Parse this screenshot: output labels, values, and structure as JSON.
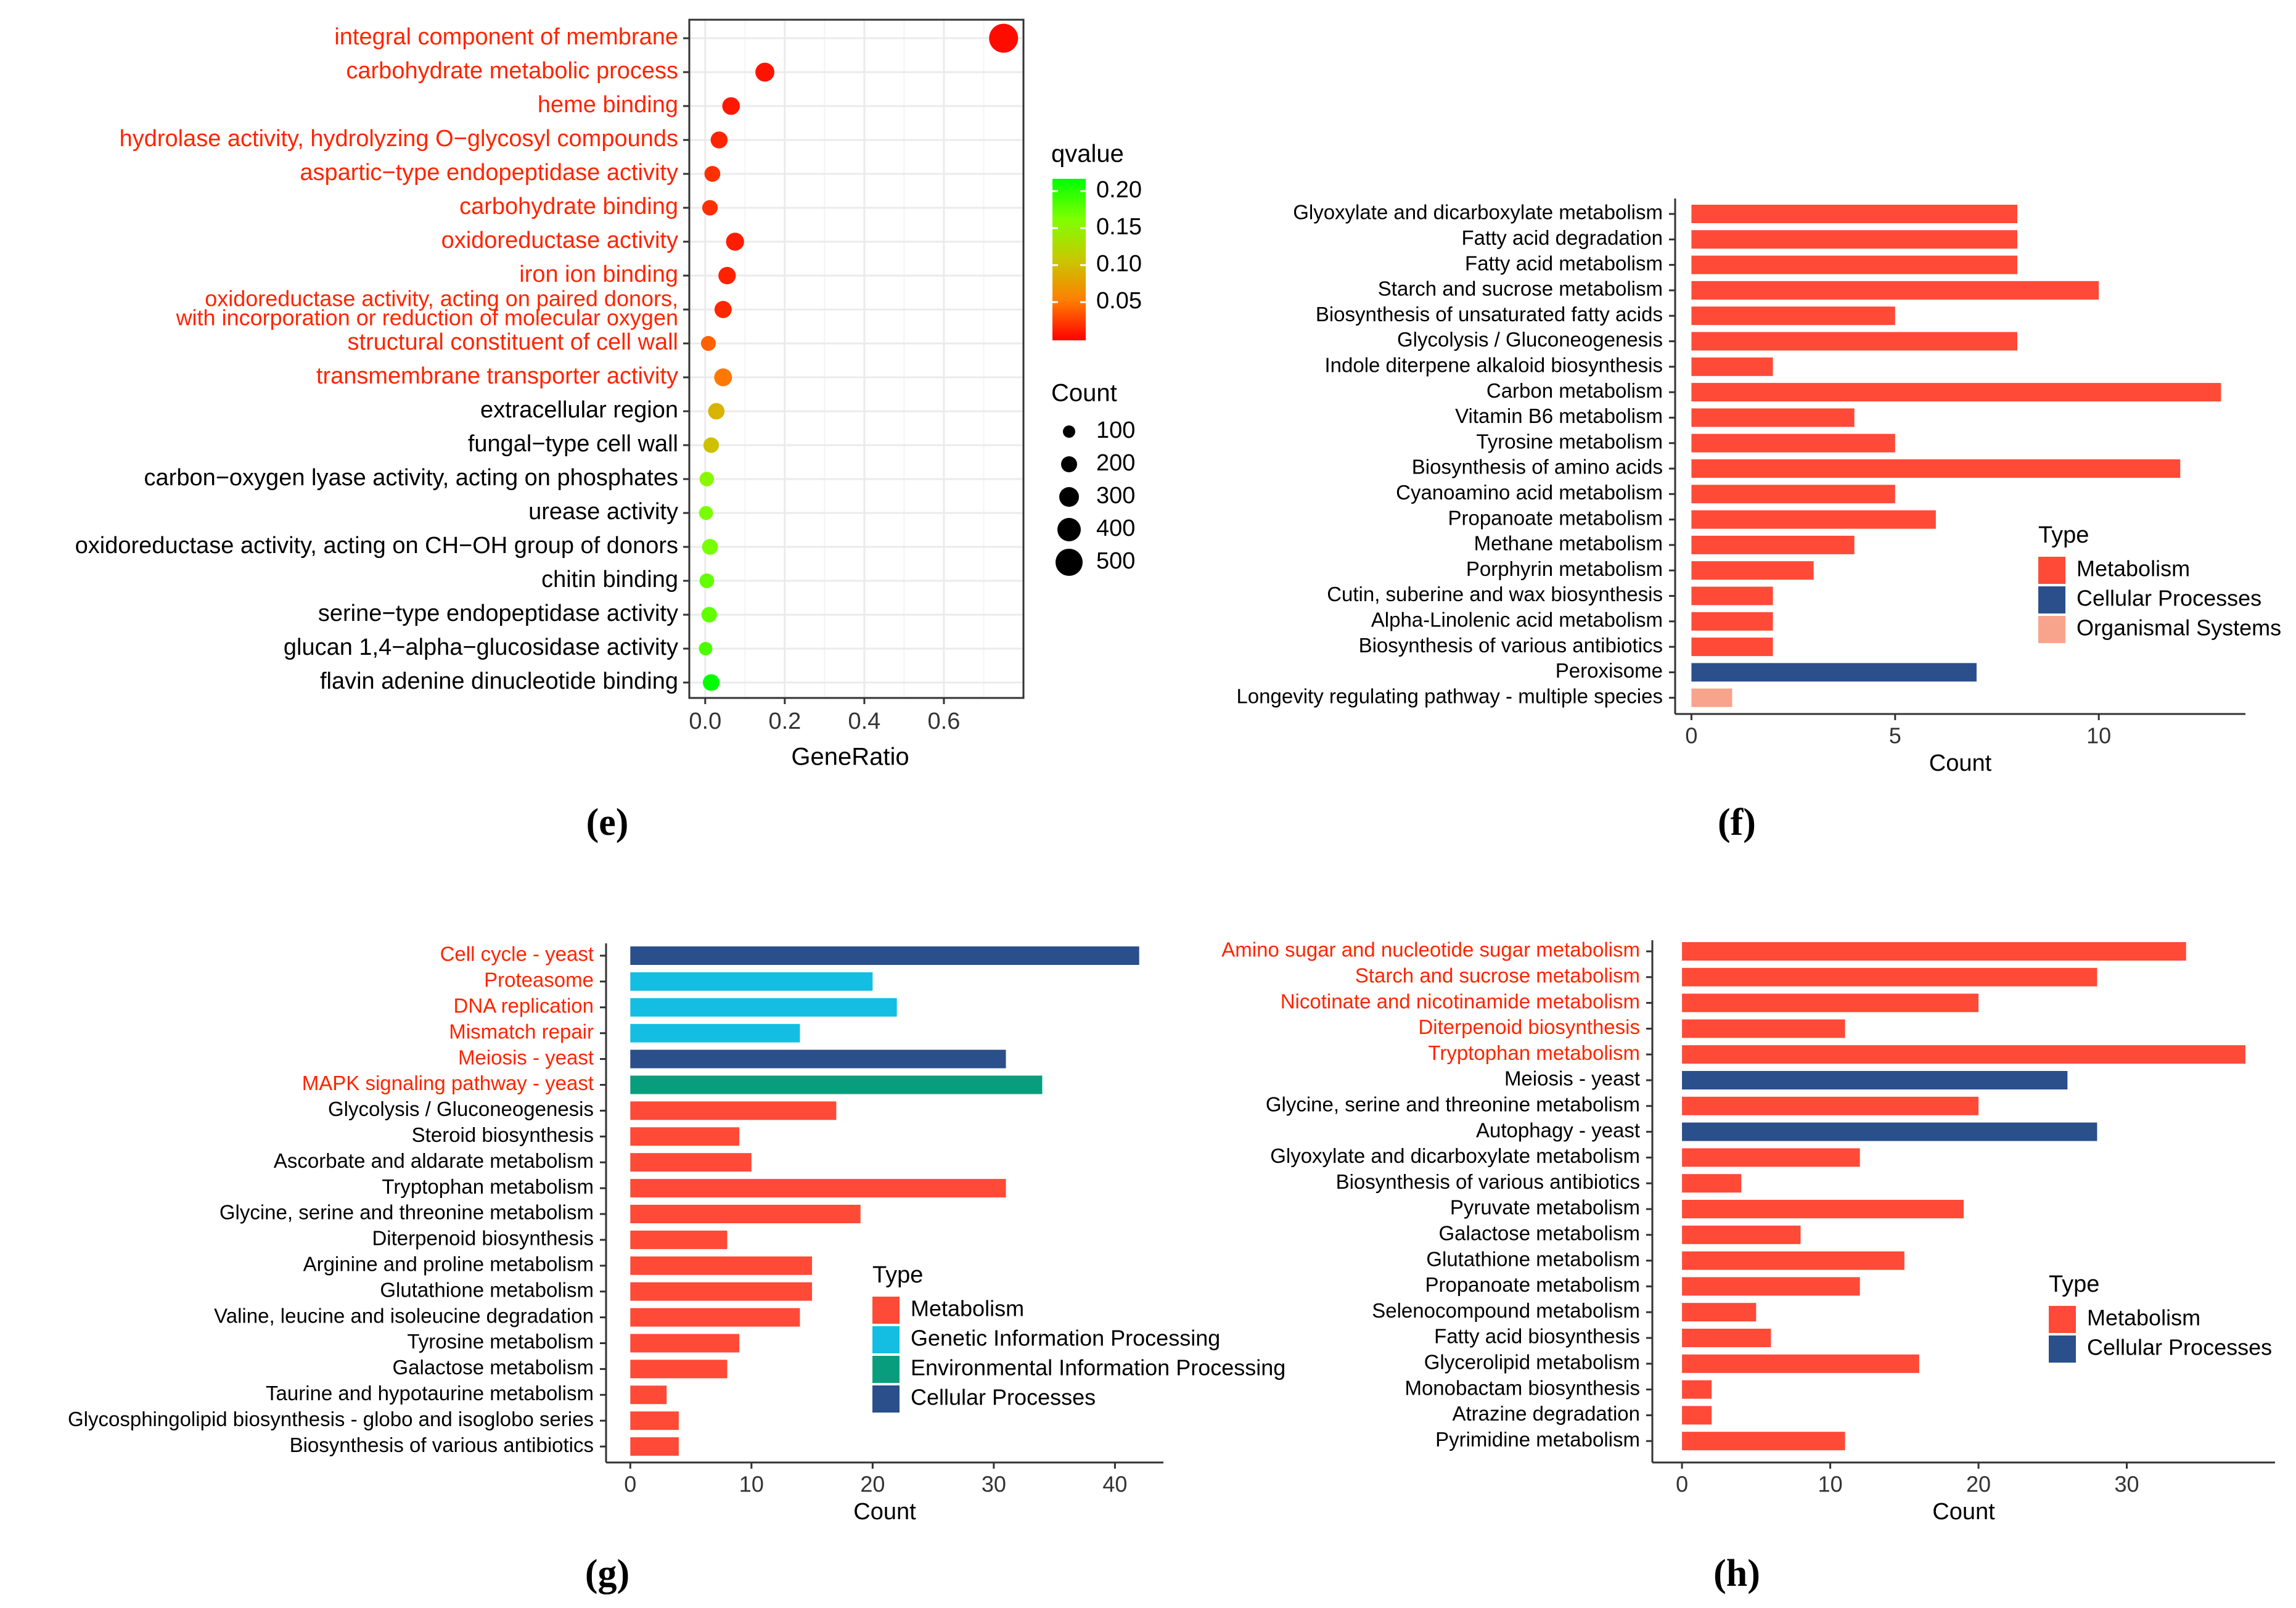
{
  "colors": {
    "metabolism": "#FE4A37",
    "cellular": "#2A4F8A",
    "organismal": "#F8A38C",
    "genetic": "#14BEE2",
    "environmental": "#089E7D",
    "red_label": "#FF2400",
    "black_label": "#000000",
    "grid": "#EBEBEB",
    "qvalue_gradient": [
      "#FF0000",
      "#FF7F00",
      "#C8C800",
      "#7FFF00",
      "#00FF00"
    ]
  },
  "chart_data": [
    {
      "panel": "e",
      "type": "scatter",
      "panel_label": "(e)",
      "xlabel": "GeneRatio",
      "xlim": [
        -0.04,
        0.8
      ],
      "xticks": [
        "0.0",
        "0.2",
        "0.4",
        "0.6"
      ],
      "xtick_values": [
        0,
        0.2,
        0.4,
        0.6
      ],
      "grid": true,
      "legend_qvalue_title": "qvalue",
      "legend_qvalue_ticks": [
        "0.20",
        "0.15",
        "0.10",
        "0.05"
      ],
      "legend_count_title": "Count",
      "legend_count_ticks": [
        "100",
        "200",
        "300",
        "400",
        "500"
      ],
      "terms": [
        {
          "label": "integral component of membrane",
          "ratio": 0.75,
          "q": 0.005,
          "count": 560,
          "red": true
        },
        {
          "label": "carbohydrate metabolic process",
          "ratio": 0.15,
          "q": 0.008,
          "count": 110,
          "red": true
        },
        {
          "label": "heme binding",
          "ratio": 0.065,
          "q": 0.01,
          "count": 75,
          "red": true
        },
        {
          "label": "hydrolase activity, hydrolyzing O−glycosyl compounds",
          "ratio": 0.035,
          "q": 0.015,
          "count": 60,
          "red": true
        },
        {
          "label": "aspartic−type endopeptidase activity",
          "ratio": 0.018,
          "q": 0.02,
          "count": 40,
          "red": true
        },
        {
          "label": "carbohydrate binding",
          "ratio": 0.012,
          "q": 0.02,
          "count": 35,
          "red": true
        },
        {
          "label": "oxidoreductase activity",
          "ratio": 0.075,
          "q": 0.012,
          "count": 85,
          "red": true
        },
        {
          "label": "iron ion binding",
          "ratio": 0.055,
          "q": 0.014,
          "count": 70,
          "red": true
        },
        {
          "label": "oxidoreductase activity, acting on paired donors,",
          "label2": "with incorporation or reduction of molecular oxygen",
          "ratio": 0.045,
          "q": 0.016,
          "count": 65,
          "red": true
        },
        {
          "label": "structural constituent of cell wall",
          "ratio": 0.008,
          "q": 0.04,
          "count": 25,
          "red": true
        },
        {
          "label": "transmembrane transporter activity",
          "ratio": 0.045,
          "q": 0.05,
          "count": 80,
          "red": true
        },
        {
          "label": "extracellular region",
          "ratio": 0.028,
          "q": 0.09,
          "count": 50,
          "red": false
        },
        {
          "label": "fungal−type cell wall",
          "ratio": 0.015,
          "q": 0.1,
          "count": 35,
          "red": false
        },
        {
          "label": "carbon−oxygen lyase activity, acting on phosphates",
          "ratio": 0.004,
          "q": 0.15,
          "count": 20,
          "red": false
        },
        {
          "label": "urease activity",
          "ratio": 0.002,
          "q": 0.16,
          "count": 15,
          "red": false
        },
        {
          "label": "oxidoreductase activity, acting on CH−OH group of donors",
          "ratio": 0.012,
          "q": 0.16,
          "count": 40,
          "red": false
        },
        {
          "label": "chitin binding",
          "ratio": 0.004,
          "q": 0.17,
          "count": 22,
          "red": false
        },
        {
          "label": "serine−type endopeptidase activity",
          "ratio": 0.01,
          "q": 0.17,
          "count": 35,
          "red": false
        },
        {
          "label": "glucan 1,4−alpha−glucosidase activity",
          "ratio": 0.001,
          "q": 0.18,
          "count": 10,
          "red": false
        },
        {
          "label": "flavin adenine dinucleotide binding",
          "ratio": 0.015,
          "q": 0.21,
          "count": 55,
          "red": false
        }
      ]
    },
    {
      "panel": "f",
      "type": "bar",
      "panel_label": "(f)",
      "xlabel": "Count",
      "xlim": [
        -0.4,
        13.6
      ],
      "xticks": [
        "0",
        "5",
        "10"
      ],
      "xtick_values": [
        0,
        5,
        10
      ],
      "legend_title": "Type",
      "legend": [
        {
          "name": "Metabolism",
          "key": "metabolism"
        },
        {
          "name": "Cellular Processes",
          "key": "cellular"
        },
        {
          "name": "Organismal Systems",
          "key": "organismal"
        }
      ],
      "bars": [
        {
          "label": "Glyoxylate and dicarboxylate metabolism",
          "value": 8,
          "type": "metabolism"
        },
        {
          "label": "Fatty acid degradation",
          "value": 8,
          "type": "metabolism"
        },
        {
          "label": "Fatty acid metabolism",
          "value": 8,
          "type": "metabolism"
        },
        {
          "label": "Starch and sucrose metabolism",
          "value": 10,
          "type": "metabolism"
        },
        {
          "label": "Biosynthesis of unsaturated fatty acids",
          "value": 5,
          "type": "metabolism"
        },
        {
          "label": "Glycolysis / Gluconeogenesis",
          "value": 8,
          "type": "metabolism"
        },
        {
          "label": "Indole diterpene alkaloid biosynthesis",
          "value": 2,
          "type": "metabolism"
        },
        {
          "label": "Carbon metabolism",
          "value": 13,
          "type": "metabolism"
        },
        {
          "label": "Vitamin B6 metabolism",
          "value": 4,
          "type": "metabolism"
        },
        {
          "label": "Tyrosine metabolism",
          "value": 5,
          "type": "metabolism"
        },
        {
          "label": "Biosynthesis of amino acids",
          "value": 12,
          "type": "metabolism"
        },
        {
          "label": "Cyanoamino acid metabolism",
          "value": 5,
          "type": "metabolism"
        },
        {
          "label": "Propanoate metabolism",
          "value": 6,
          "type": "metabolism"
        },
        {
          "label": "Methane metabolism",
          "value": 4,
          "type": "metabolism"
        },
        {
          "label": "Porphyrin metabolism",
          "value": 3,
          "type": "metabolism"
        },
        {
          "label": "Cutin, suberine and wax biosynthesis",
          "value": 2,
          "type": "metabolism"
        },
        {
          "label": "Alpha-Linolenic acid metabolism",
          "value": 2,
          "type": "metabolism"
        },
        {
          "label": "Biosynthesis of various antibiotics",
          "value": 2,
          "type": "metabolism"
        },
        {
          "label": "Peroxisome",
          "value": 7,
          "type": "cellular"
        },
        {
          "label": "Longevity regulating pathway - multiple species",
          "value": 1,
          "type": "organismal"
        }
      ]
    },
    {
      "panel": "g",
      "type": "bar",
      "panel_label": "(g)",
      "xlabel": "Count",
      "xlim": [
        -2,
        44
      ],
      "xticks": [
        "0",
        "10",
        "20",
        "30",
        "40"
      ],
      "xtick_values": [
        0,
        10,
        20,
        30,
        40
      ],
      "legend_title": "Type",
      "legend": [
        {
          "name": "Metabolism",
          "key": "metabolism"
        },
        {
          "name": "Genetic Information Processing",
          "key": "genetic"
        },
        {
          "name": "Environmental Information Processing",
          "key": "environmental"
        },
        {
          "name": "Cellular Processes",
          "key": "cellular"
        }
      ],
      "bars": [
        {
          "label": "Cell cycle - yeast",
          "value": 42,
          "type": "cellular",
          "red": true
        },
        {
          "label": "Proteasome",
          "value": 20,
          "type": "genetic",
          "red": true
        },
        {
          "label": "DNA replication",
          "value": 22,
          "type": "genetic",
          "red": true
        },
        {
          "label": "Mismatch repair",
          "value": 14,
          "type": "genetic",
          "red": true
        },
        {
          "label": "Meiosis - yeast",
          "value": 31,
          "type": "cellular",
          "red": true
        },
        {
          "label": "MAPK signaling pathway - yeast",
          "value": 34,
          "type": "environmental",
          "red": true
        },
        {
          "label": "Glycolysis / Gluconeogenesis",
          "value": 17,
          "type": "metabolism"
        },
        {
          "label": "Steroid biosynthesis",
          "value": 9,
          "type": "metabolism"
        },
        {
          "label": "Ascorbate and aldarate metabolism",
          "value": 10,
          "type": "metabolism"
        },
        {
          "label": "Tryptophan metabolism",
          "value": 31,
          "type": "metabolism"
        },
        {
          "label": "Glycine, serine and threonine metabolism",
          "value": 19,
          "type": "metabolism"
        },
        {
          "label": "Diterpenoid biosynthesis",
          "value": 8,
          "type": "metabolism"
        },
        {
          "label": "Arginine and proline metabolism",
          "value": 15,
          "type": "metabolism"
        },
        {
          "label": "Glutathione metabolism",
          "value": 15,
          "type": "metabolism"
        },
        {
          "label": "Valine, leucine and isoleucine degradation",
          "value": 14,
          "type": "metabolism"
        },
        {
          "label": "Tyrosine metabolism",
          "value": 9,
          "type": "metabolism"
        },
        {
          "label": "Galactose metabolism",
          "value": 8,
          "type": "metabolism"
        },
        {
          "label": "Taurine and hypotaurine metabolism",
          "value": 3,
          "type": "metabolism"
        },
        {
          "label": "Glycosphingolipid biosynthesis - globo and isoglobo series",
          "value": 4,
          "type": "metabolism"
        },
        {
          "label": "Biosynthesis of various antibiotics",
          "value": 4,
          "type": "metabolism"
        }
      ]
    },
    {
      "panel": "h",
      "type": "bar",
      "panel_label": "(h)",
      "xlabel": "Count",
      "xlim": [
        -2,
        40
      ],
      "xticks": [
        "0",
        "10",
        "20",
        "30"
      ],
      "xtick_values": [
        0,
        10,
        20,
        30
      ],
      "legend_title": "Type",
      "legend": [
        {
          "name": "Metabolism",
          "key": "metabolism"
        },
        {
          "name": "Cellular Processes",
          "key": "cellular"
        }
      ],
      "bars": [
        {
          "label": "Amino sugar and nucleotide sugar metabolism",
          "value": 34,
          "type": "metabolism",
          "red": true
        },
        {
          "label": "Starch and sucrose metabolism",
          "value": 28,
          "type": "metabolism",
          "red": true
        },
        {
          "label": "Nicotinate and nicotinamide metabolism",
          "value": 20,
          "type": "metabolism",
          "red": true
        },
        {
          "label": "Diterpenoid biosynthesis",
          "value": 11,
          "type": "metabolism",
          "red": true
        },
        {
          "label": "Tryptophan metabolism",
          "value": 38,
          "type": "metabolism",
          "red": true
        },
        {
          "label": "Meiosis - yeast",
          "value": 26,
          "type": "cellular"
        },
        {
          "label": "Glycine, serine and threonine metabolism",
          "value": 20,
          "type": "metabolism"
        },
        {
          "label": "Autophagy - yeast",
          "value": 28,
          "type": "cellular"
        },
        {
          "label": "Glyoxylate and dicarboxylate metabolism",
          "value": 12,
          "type": "metabolism"
        },
        {
          "label": "Biosynthesis of various antibiotics",
          "value": 4,
          "type": "metabolism"
        },
        {
          "label": "Pyruvate metabolism",
          "value": 19,
          "type": "metabolism"
        },
        {
          "label": "Galactose metabolism",
          "value": 8,
          "type": "metabolism"
        },
        {
          "label": "Glutathione metabolism",
          "value": 15,
          "type": "metabolism"
        },
        {
          "label": "Propanoate metabolism",
          "value": 12,
          "type": "metabolism"
        },
        {
          "label": "Selenocompound metabolism",
          "value": 5,
          "type": "metabolism"
        },
        {
          "label": "Fatty acid biosynthesis",
          "value": 6,
          "type": "metabolism"
        },
        {
          "label": "Glycerolipid metabolism",
          "value": 16,
          "type": "metabolism"
        },
        {
          "label": "Monobactam biosynthesis",
          "value": 2,
          "type": "metabolism"
        },
        {
          "label": "Atrazine degradation",
          "value": 2,
          "type": "metabolism"
        },
        {
          "label": "Pyrimidine metabolism",
          "value": 11,
          "type": "metabolism"
        }
      ]
    }
  ]
}
